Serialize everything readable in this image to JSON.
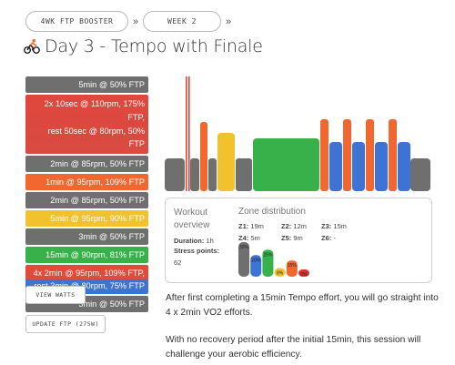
{
  "breadcrumb": {
    "items": [
      "4WK FTP BOOSTER",
      "WEEK 2"
    ],
    "separator": "»"
  },
  "page": {
    "title": "Day 3 - Tempo with Finale",
    "title_icon": "cyclist-icon"
  },
  "intervals": [
    {
      "label": "5min @ 50% FTP",
      "color": "#6f6f6f"
    },
    {
      "label": "2x 10sec @ 110rpm, 175% FTP,\nrest 50sec @ 80rpm, 50% FTP",
      "color": "#e0473c"
    },
    {
      "label": "2min @ 85rpm, 50% FTP",
      "color": "#6f6f6f"
    },
    {
      "label": "1min @ 95rpm, 109% FTP",
      "color": "#f26630"
    },
    {
      "label": "2min @ 85rpm, 50% FTP",
      "color": "#6f6f6f"
    },
    {
      "label": "5min @ 95rpm, 90% FTP",
      "color": "#f2c22e"
    },
    {
      "label": "3min @ 50% FTP",
      "color": "#6f6f6f"
    },
    {
      "label": "15min @ 90rpm, 81% FTP",
      "color": "#38b14a"
    },
    {
      "label": "4x 2min @ 95rpm, 109% FTP,\nrest 3min @ 80rpm, 75% FTP",
      "color": "#e34a3a"
    },
    {
      "label": "5min @ 50% FTP",
      "color": "#6f6f6f"
    }
  ],
  "buttons": {
    "view_watts": "VIEW WATTS",
    "update_ftp": "UPDATE FTP (275W)"
  },
  "overview": {
    "heading": "Workout overview",
    "duration_label": "Duration:",
    "duration_value": "1h",
    "stress_label": "Stress points:",
    "stress_value": "62"
  },
  "zone_distribution": {
    "heading": "Zone distribution",
    "zones": [
      {
        "label": "Z1:",
        "value": "19m"
      },
      {
        "label": "Z2:",
        "value": "12m"
      },
      {
        "label": "Z3:",
        "value": "15m"
      },
      {
        "label": "Z4:",
        "value": "5m"
      },
      {
        "label": "Z5:",
        "value": "9m"
      },
      {
        "label": "Z6:",
        "value": "-"
      }
    ],
    "bars": [
      {
        "label": "32%",
        "color": "#6f6f6f",
        "fraction": 0.32
      },
      {
        "label": "20%",
        "color": "#3d73d4",
        "fraction": 0.2
      },
      {
        "label": "25%",
        "color": "#38b14a",
        "fraction": 0.25
      },
      {
        "label": "8%",
        "color": "#f2c22e",
        "fraction": 0.08
      },
      {
        "label": "15%",
        "color": "#f26630",
        "fraction": 0.15
      },
      {
        "label": "0%",
        "color": "#e0302c",
        "fraction": 0.0
      }
    ]
  },
  "description": {
    "p1": "After first completing a 15min Tempo effort, you will go straight into 4 x 2min VO2 efforts.",
    "p2": "With no recovery period after the initial 15min, this session will challenge your aerobic efficiency."
  },
  "colors": {
    "z1": "#6f6f6f",
    "z2": "#3d73d4",
    "z3": "#38b14a",
    "z4": "#f2c22e",
    "z5": "#f26630",
    "z6": "#e0473c"
  }
}
